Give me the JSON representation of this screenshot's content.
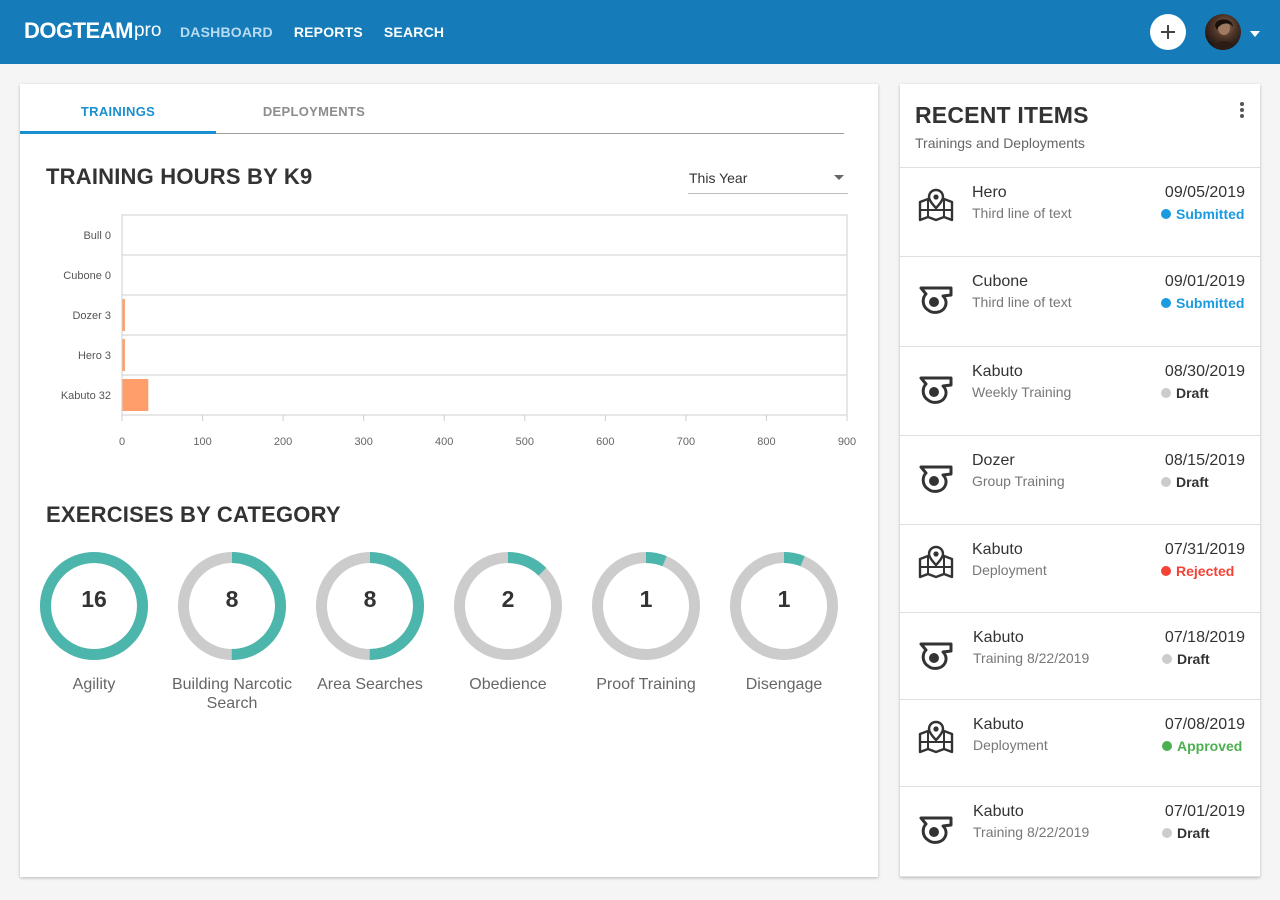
{
  "header": {
    "logo_bold": "DOGTEAM",
    "logo_light": "pro",
    "nav": [
      "DASHBOARD",
      "REPORTS",
      "SEARCH"
    ],
    "active_nav": "DASHBOARD",
    "brand_color": "#157cb9",
    "add_icon": "plus-icon",
    "avatar_icon": "user-avatar"
  },
  "main": {
    "tabs": [
      {
        "label": "TRAININGS",
        "active": true
      },
      {
        "label": "DEPLOYMENTS",
        "active": false
      }
    ],
    "training_title": "TRAINING HOURS BY K9",
    "range_select": "This Year",
    "exercises_title": "EXERCISES BY CATEGORY"
  },
  "chart_data": [
    {
      "type": "bar",
      "orientation": "horizontal",
      "title": "TRAINING HOURS BY K9",
      "categories": [
        "Bull",
        "Cubone",
        "Dozer",
        "Hero",
        "Kabuto"
      ],
      "values": [
        0,
        0,
        3,
        3,
        32
      ],
      "xlim": [
        0,
        900
      ],
      "xticks": [
        0,
        100,
        200,
        300,
        400,
        500,
        600,
        700,
        800,
        900
      ],
      "bar_color": "#ff9e6b",
      "grid": true
    },
    {
      "type": "pie",
      "title": "EXERCISES BY CATEGORY",
      "categories": [
        "Agility",
        "Building Narcotic Search",
        "Area Searches",
        "Obedience",
        "Proof Training",
        "Disengage"
      ],
      "values": [
        16,
        8,
        8,
        2,
        1,
        1
      ],
      "max": 16,
      "fill_color": "#4db6ac",
      "track_color": "#cccccc"
    }
  ],
  "recent": {
    "title": "RECENT ITEMS",
    "subtitle": "Trainings and Deployments",
    "items": [
      {
        "icon": "map-pin-icon",
        "name": "Hero",
        "sub": "Third line of text",
        "date": "09/05/2019",
        "status": "Submitted",
        "status_color": "#1a9be0"
      },
      {
        "icon": "whistle-icon",
        "name": "Cubone",
        "sub": "Third line of text",
        "date": "09/01/2019",
        "status": "Submitted",
        "status_color": "#1a9be0"
      },
      {
        "icon": "whistle-icon",
        "name": "Kabuto",
        "sub": "Weekly Training",
        "date": "08/30/2019",
        "status": "Draft",
        "status_color": "#cccccc"
      },
      {
        "icon": "whistle-icon",
        "name": "Dozer",
        "sub": "Group Training",
        "date": "08/15/2019",
        "status": "Draft",
        "status_color": "#cccccc"
      },
      {
        "icon": "map-pin-icon",
        "name": "Kabuto",
        "sub": "Deployment",
        "date": "07/31/2019",
        "status": "Rejected",
        "status_color": "#f44336"
      },
      {
        "icon": "whistle-icon",
        "name": "Kabuto",
        "sub": "Training 8/22/2019",
        "date": "07/18/2019",
        "status": "Draft",
        "status_color": "#cccccc"
      },
      {
        "icon": "map-pin-icon",
        "name": "Kabuto",
        "sub": "Deployment",
        "date": "07/08/2019",
        "status": "Approved",
        "status_color": "#4caf50"
      },
      {
        "icon": "whistle-icon",
        "name": "Kabuto",
        "sub": "Training 8/22/2019",
        "date": "07/01/2019",
        "status": "Draft",
        "status_color": "#cccccc"
      }
    ]
  }
}
